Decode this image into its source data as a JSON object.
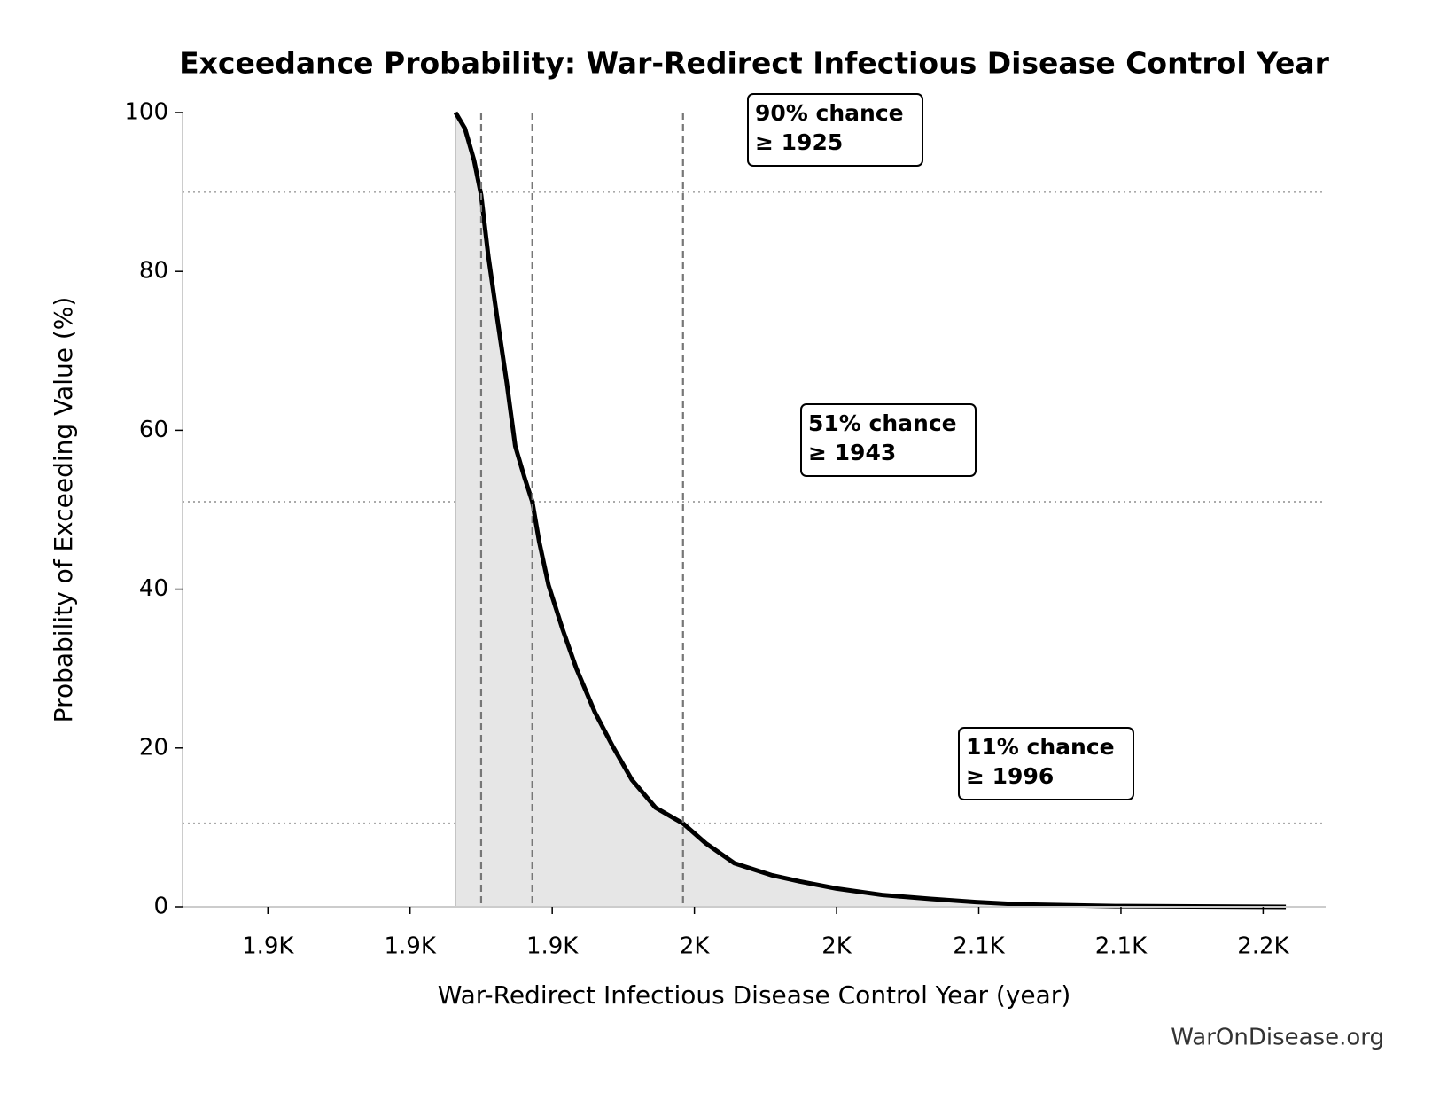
{
  "chart_data": {
    "type": "line",
    "title": "Exceedance Probability: War-Redirect Infectious Disease Control Year",
    "xlabel": "War-Redirect Infectious Disease Control Year (year)",
    "ylabel": "Probability of Exceeding Value (%)",
    "watermark": "WarOnDisease.org",
    "xlim": [
      1820,
      2222
    ],
    "ylim": [
      0,
      100
    ],
    "xticks": [
      {
        "value": 1850,
        "label": "1.9K"
      },
      {
        "value": 1900,
        "label": "1.9K"
      },
      {
        "value": 1950,
        "label": "1.9K"
      },
      {
        "value": 2000,
        "label": "2K"
      },
      {
        "value": 2050,
        "label": "2K"
      },
      {
        "value": 2100,
        "label": "2.1K"
      },
      {
        "value": 2150,
        "label": "2.1K"
      },
      {
        "value": 2200,
        "label": "2.2K"
      }
    ],
    "yticks": [
      0,
      20,
      40,
      60,
      80,
      100
    ],
    "color": "#000000",
    "fill_color": "#e6e6e6",
    "x": [
      1916,
      1919.3,
      1922.5,
      1925,
      1927.5,
      1930.7,
      1934,
      1937,
      1940.3,
      1943,
      1945.4,
      1948.7,
      1953.6,
      1958.5,
      1965,
      1971.6,
      1978,
      1986.3,
      1996,
      2004,
      2014,
      2027,
      2037,
      2050,
      2066,
      2083,
      2099,
      2115,
      2148,
      2208
    ],
    "values": [
      100,
      98,
      94,
      89.6,
      82,
      74,
      66,
      58,
      54,
      51,
      46,
      40.5,
      35,
      30,
      24.5,
      20,
      16,
      12.5,
      10.5,
      8,
      5.5,
      4,
      3.2,
      2.3,
      1.5,
      1,
      0.6,
      0.3,
      0.1,
      0
    ],
    "hlines": [
      90,
      51,
      10.5
    ],
    "vlines": [
      1925,
      1943,
      1996
    ],
    "annotations": [
      {
        "lines": [
          "90% chance",
          "≥ 1925"
        ]
      },
      {
        "lines": [
          "51% chance",
          "≥ 1943"
        ]
      },
      {
        "lines": [
          "11% chance",
          "≥ 1996"
        ]
      }
    ]
  }
}
